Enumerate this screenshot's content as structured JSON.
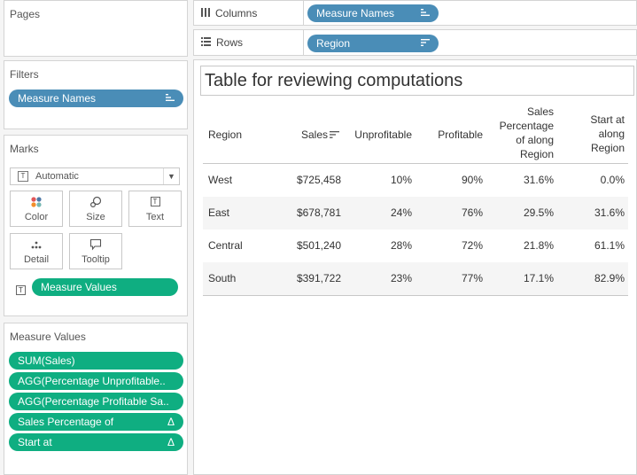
{
  "pages": {
    "title": "Pages"
  },
  "filters": {
    "title": "Filters",
    "pills": [
      {
        "label": "Measure Names",
        "icon": "sort-icon"
      }
    ]
  },
  "marks": {
    "title": "Marks",
    "mark_type": "Automatic",
    "buttons": [
      {
        "label": "Color",
        "icon": "color-dots-icon"
      },
      {
        "label": "Size",
        "icon": "size-icon"
      },
      {
        "label": "Text",
        "icon": "text-icon"
      },
      {
        "label": "Detail",
        "icon": "detail-dots-icon"
      },
      {
        "label": "Tooltip",
        "icon": "tooltip-icon"
      }
    ],
    "field": {
      "label": "Measure Values",
      "icon": "text-icon"
    }
  },
  "measure_values": {
    "title": "Measure Values",
    "pills": [
      {
        "label": "SUM(Sales)",
        "icon": ""
      },
      {
        "label": "AGG(Percentage Unprofitable..",
        "icon": ""
      },
      {
        "label": "AGG(Percentage Profitable Sa..",
        "icon": ""
      },
      {
        "label": "Sales Percentage of",
        "icon": "Δ"
      },
      {
        "label": "Start at",
        "icon": "Δ"
      }
    ]
  },
  "columns_shelf": {
    "label": "Columns",
    "icon": "columns-icon",
    "pill": "Measure Names"
  },
  "rows_shelf": {
    "label": "Rows",
    "icon": "rows-icon",
    "pill": "Region"
  },
  "view": {
    "title": "Table for reviewing computations",
    "headers": [
      [
        "Region"
      ],
      [
        "Sales"
      ],
      [
        "Unprofitable"
      ],
      [
        "Profitable"
      ],
      [
        "Sales",
        "Percentage",
        "of along",
        "Region"
      ],
      [
        "Start at",
        "along",
        "Region"
      ]
    ],
    "rows": [
      [
        "West",
        "$725,458",
        "10%",
        "90%",
        "31.6%",
        "0.0%"
      ],
      [
        "East",
        "$678,781",
        "24%",
        "76%",
        "29.5%",
        "31.6%"
      ],
      [
        "Central",
        "$501,240",
        "28%",
        "72%",
        "21.8%",
        "61.1%"
      ],
      [
        "South",
        "$391,722",
        "23%",
        "77%",
        "17.1%",
        "82.9%"
      ]
    ]
  },
  "colors": {
    "blue_pill": "#4a8db7",
    "green_pill": "#0fae81"
  }
}
